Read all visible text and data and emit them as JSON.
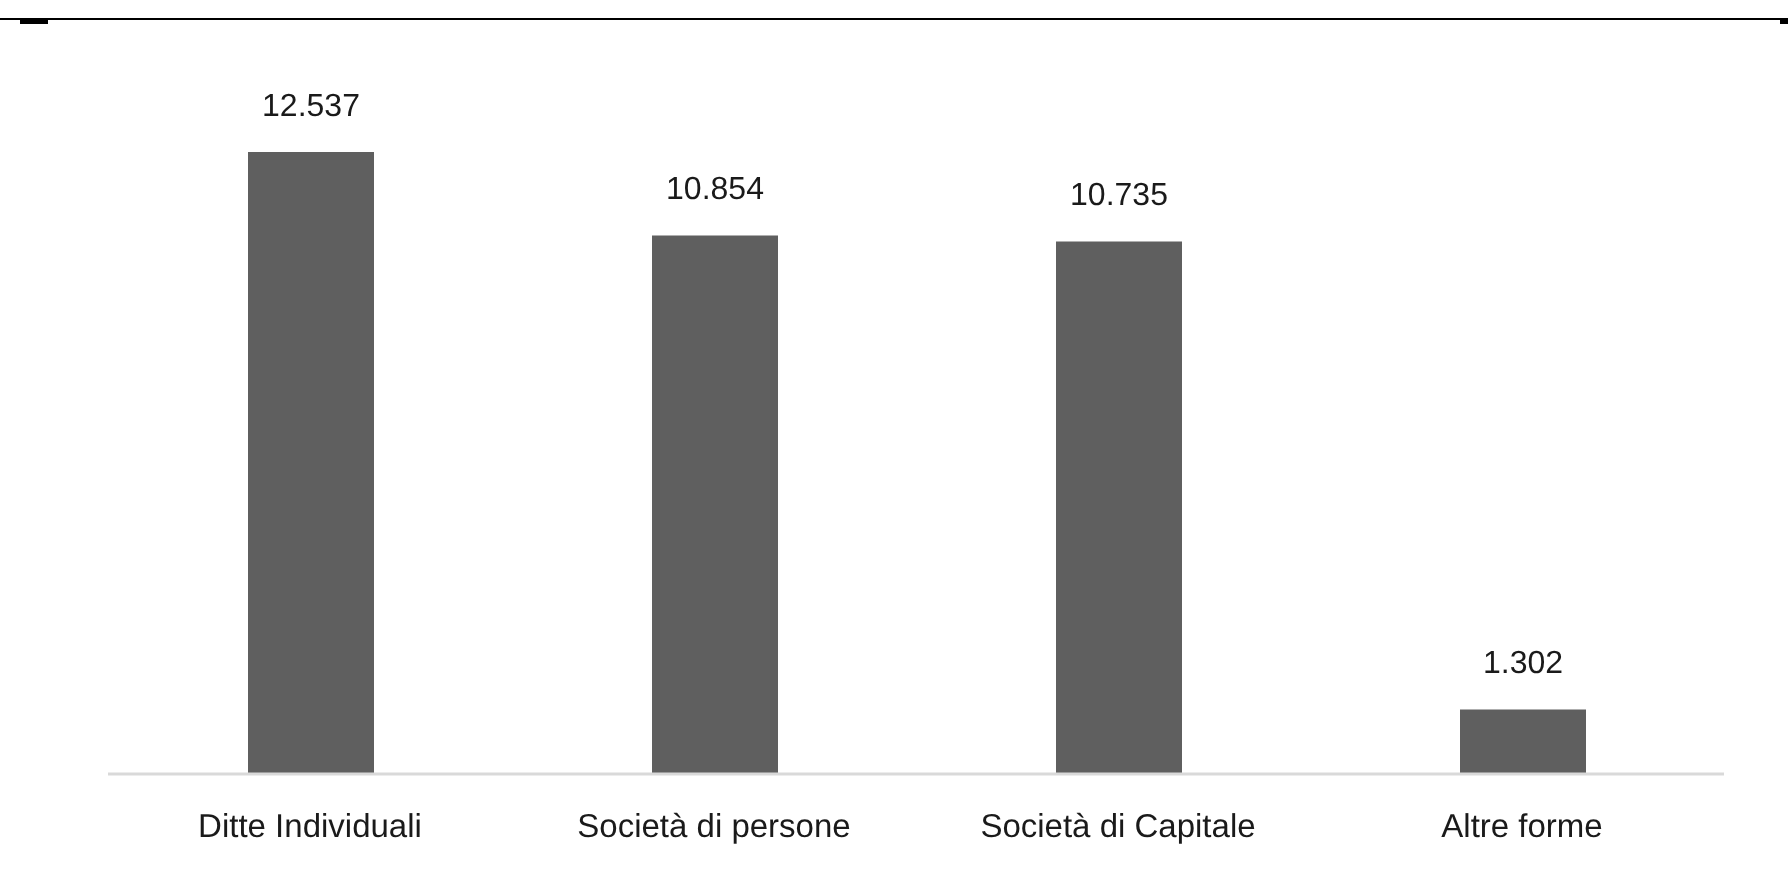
{
  "chart_data": {
    "type": "bar",
    "categories": [
      "Ditte Individuali",
      "Società di persone",
      "Società di Capitale",
      "Altre forme"
    ],
    "values": [
      12537,
      10854,
      10735,
      1302
    ],
    "value_labels": [
      "12.537",
      "10.854",
      "10.735",
      "1.302"
    ],
    "color": "#5f5f5f"
  }
}
